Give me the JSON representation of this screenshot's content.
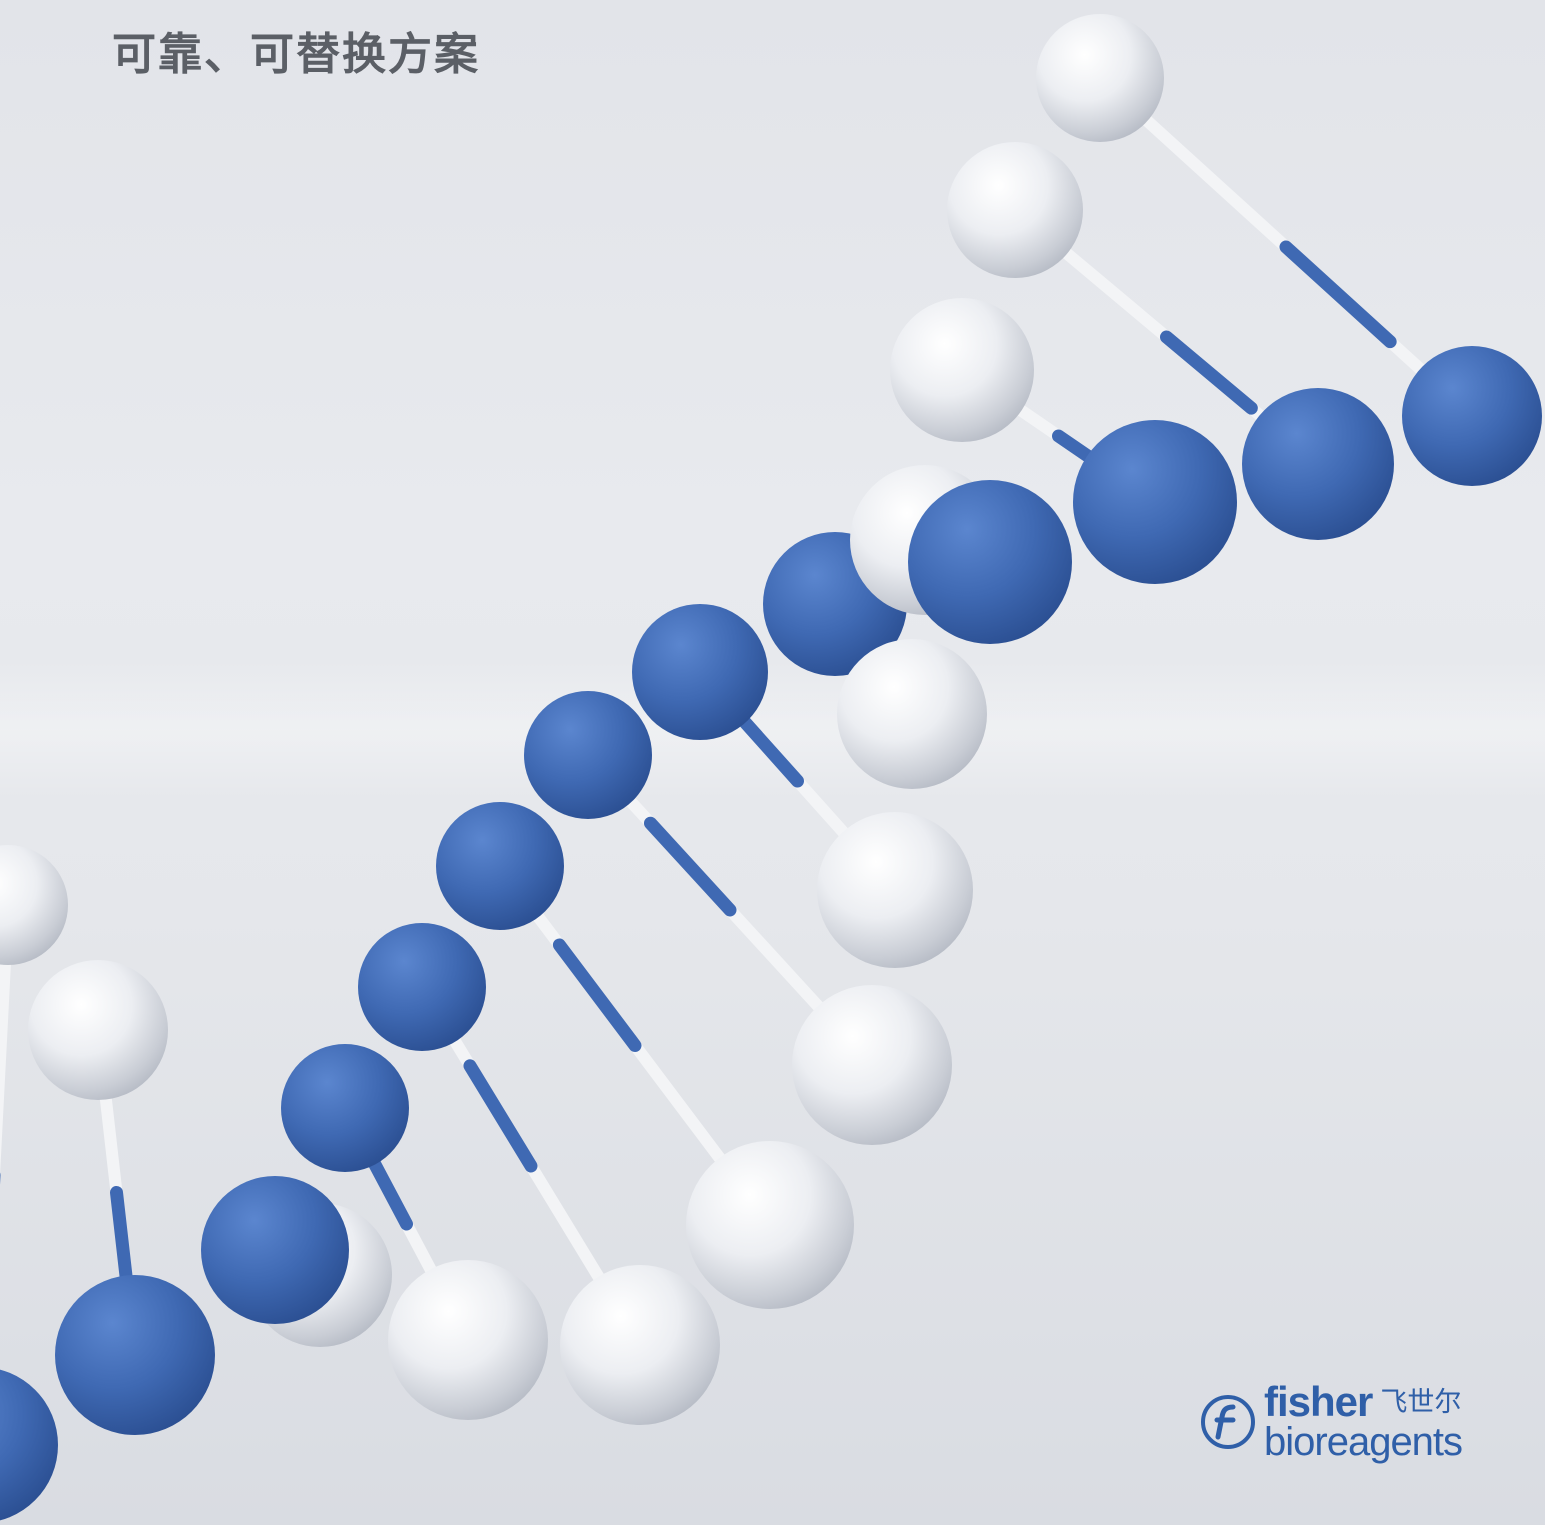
{
  "headline": "可靠、可替换方案",
  "brand": {
    "name_en": "fisher",
    "name_cn": "飞世尔",
    "subline": "bioreagents",
    "icon": "fisher-f-circle-icon"
  },
  "colors": {
    "accent_blue": "#3f69b3",
    "sphere_white": "#eef0f3",
    "headline_gray": "#5b5f66",
    "brand_blue": "#2f5fa8"
  },
  "illustration": {
    "subject": "dna-double-helix-icon"
  }
}
